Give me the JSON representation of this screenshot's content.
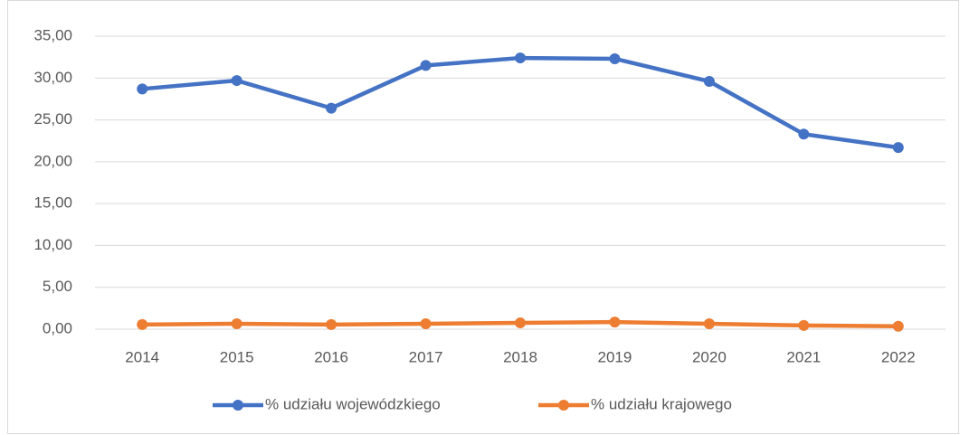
{
  "chart_data": {
    "type": "line",
    "categories": [
      "2014",
      "2015",
      "2016",
      "2017",
      "2018",
      "2019",
      "2020",
      "2021",
      "2022"
    ],
    "series": [
      {
        "name": "% udziału wojewódzkiego",
        "color": "#4472c4",
        "values": [
          28.7,
          29.7,
          26.4,
          31.5,
          32.4,
          32.3,
          29.6,
          23.3,
          21.7
        ]
      },
      {
        "name": "% udziału krajowego",
        "color": "#ed7d31",
        "values": [
          0.55,
          0.65,
          0.55,
          0.65,
          0.75,
          0.85,
          0.65,
          0.45,
          0.35
        ]
      }
    ],
    "ylim": [
      0,
      35
    ],
    "yticks": [
      {
        "value": 0,
        "label": "0,00"
      },
      {
        "value": 5,
        "label": "5,00"
      },
      {
        "value": 10,
        "label": "10,00"
      },
      {
        "value": 15,
        "label": "15,00"
      },
      {
        "value": 20,
        "label": "20,00"
      },
      {
        "value": 25,
        "label": "25,00"
      },
      {
        "value": 30,
        "label": "30,00"
      },
      {
        "value": 35,
        "label": "35,00"
      }
    ],
    "grid": true,
    "legend": "bottom"
  }
}
